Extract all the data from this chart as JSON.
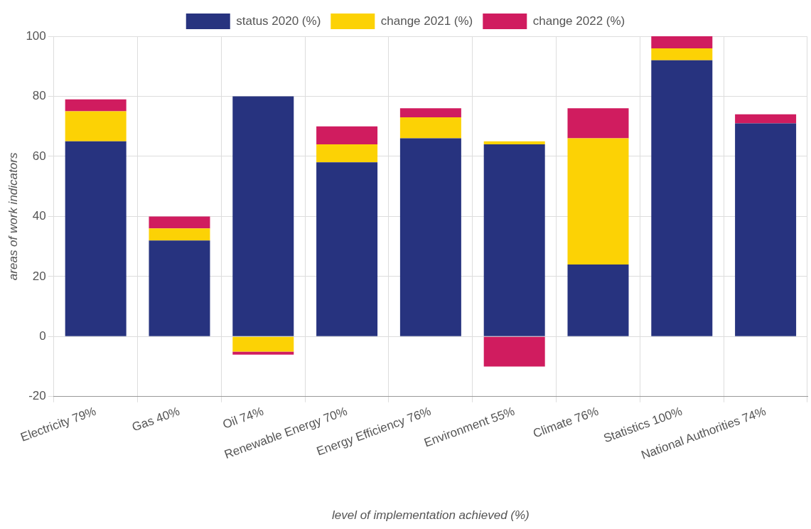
{
  "chart_data": {
    "type": "bar",
    "stacked": true,
    "xlabel": "level of implementation achieved (%)",
    "ylabel": "areas of work indicators",
    "categories": [
      "Electricity 79%",
      "Gas 40%",
      "Oil 74%",
      "Renewable Energy 70%",
      "Energy Efficiency 76%",
      "Environment 55%",
      "Climate 76%",
      "Statistics 100%",
      "National Authorities 74%"
    ],
    "series": [
      {
        "name": "status 2020 (%)",
        "color": "#27337f",
        "values": [
          65,
          32,
          80,
          58,
          66,
          64,
          24,
          92,
          71
        ]
      },
      {
        "name": "change 2021 (%)",
        "color": "#fcd205",
        "values": [
          10,
          4,
          -5,
          6,
          7,
          1,
          42,
          4,
          0
        ]
      },
      {
        "name": "change 2022 (%)",
        "color": "#d01c5f",
        "values": [
          4,
          4,
          -1,
          6,
          3,
          -10,
          10,
          4,
          3
        ]
      }
    ],
    "ylim": [
      -20,
      100
    ],
    "yticks": [
      -20,
      0,
      20,
      40,
      60,
      80,
      100
    ],
    "grid": true,
    "legend": "top"
  }
}
